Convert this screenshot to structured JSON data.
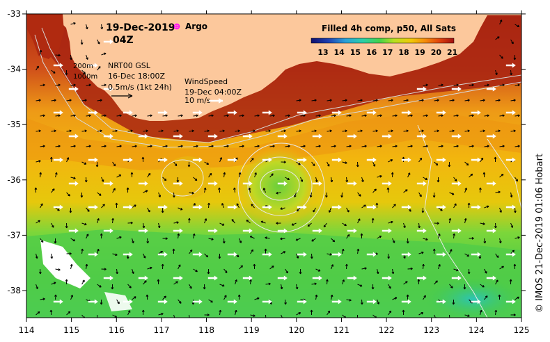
{
  "title": {
    "date": "19-Dec-2019",
    "time": "04Z"
  },
  "argo_label": "Argo",
  "colorbar": {
    "title": "Filled 4h comp, p50, All Sats",
    "ticks": [
      "13",
      "14",
      "15",
      "16",
      "17",
      "18",
      "19",
      "20",
      "21"
    ],
    "colors": [
      "#10106e",
      "#1e3fb0",
      "#2aa0d8",
      "#2ccfa8",
      "#44d24a",
      "#b8e020",
      "#f0c808",
      "#f58a0a",
      "#e0420c",
      "#a01010"
    ]
  },
  "contour_legend": {
    "levels": [
      "200m",
      "1000m"
    ]
  },
  "current_legend": {
    "source": "NRT00 GSL",
    "date": "16-Dec 18:00Z",
    "scale": "0.5m/s (1kt 24h)"
  },
  "wind_legend": {
    "title": "WindSpeed",
    "date": "19-Dec 04:00Z",
    "scale": "10 m/s"
  },
  "axes": {
    "lon_ticks": [
      "114",
      "115",
      "116",
      "117",
      "118",
      "119",
      "120",
      "121",
      "122",
      "123",
      "124",
      "125"
    ],
    "lat_ticks": [
      "-33",
      "-34",
      "-35",
      "-36",
      "-37",
      "-38"
    ]
  },
  "credit": "© IMOS 21-Dec-2019 01:06 Hobart",
  "colors": {
    "land": "#fcc89c",
    "argo": "#ff00ff"
  }
}
